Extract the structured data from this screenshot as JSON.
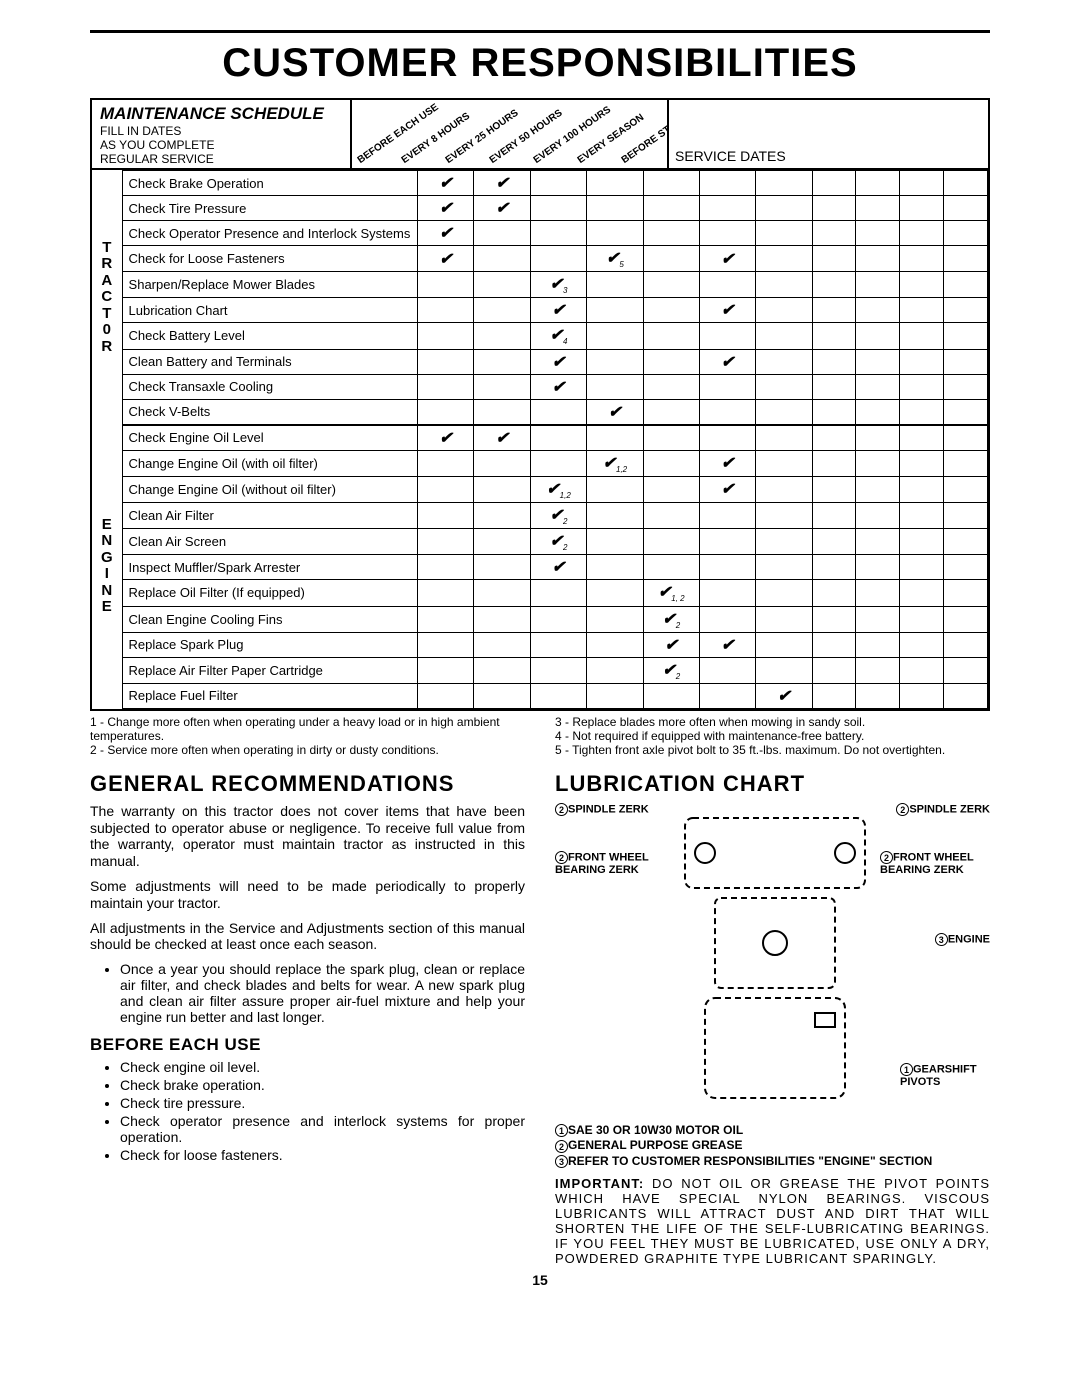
{
  "title": "CUSTOMER RESPONSIBILITIES",
  "schedule": {
    "header": "MAINTENANCE SCHEDULE",
    "subheader": "FILL IN DATES\nAS YOU COMPLETE\nREGULAR SERVICE",
    "intervals": [
      "BEFORE EACH USE",
      "EVERY 8 HOURS",
      "EVERY 25 HOURS",
      "EVERY 50 HOURS",
      "EVERY 100 HOURS",
      "EVERY SEASON",
      "BEFORE STORAGE"
    ],
    "service_dates": "SERVICE DATES",
    "categories": [
      {
        "label": "T\nR\nA\nC\nT\n0\nR",
        "rows": [
          {
            "task": "Check Brake Operation",
            "checks": [
              "✔",
              "✔",
              "",
              "",
              "",
              "",
              ""
            ]
          },
          {
            "task": "Check Tire Pressure",
            "checks": [
              "✔",
              "✔",
              "",
              "",
              "",
              "",
              ""
            ]
          },
          {
            "task": "Check Operator Presence and Interlock Systems",
            "checks": [
              "✔",
              "",
              "",
              "",
              "",
              "",
              ""
            ]
          },
          {
            "task": "Check for Loose Fasteners",
            "checks": [
              "✔",
              "",
              "",
              "✔",
              "",
              "✔",
              ""
            ],
            "subs": [
              "",
              "",
              "",
              "5",
              "",
              "",
              ""
            ]
          },
          {
            "task": "Sharpen/Replace Mower Blades",
            "checks": [
              "",
              "",
              "✔",
              "",
              "",
              "",
              ""
            ],
            "subs": [
              "",
              "",
              "3",
              "",
              "",
              "",
              ""
            ]
          },
          {
            "task": "Lubrication Chart",
            "checks": [
              "",
              "",
              "✔",
              "",
              "",
              "✔",
              ""
            ]
          },
          {
            "task": "Check Battery Level",
            "checks": [
              "",
              "",
              "✔",
              "",
              "",
              "",
              ""
            ],
            "subs": [
              "",
              "",
              "4",
              "",
              "",
              "",
              ""
            ]
          },
          {
            "task": "Clean Battery and Terminals",
            "checks": [
              "",
              "",
              "✔",
              "",
              "",
              "✔",
              ""
            ]
          },
          {
            "task": "Check Transaxle Cooling",
            "checks": [
              "",
              "",
              "✔",
              "",
              "",
              "",
              ""
            ]
          },
          {
            "task": "Check V-Belts",
            "checks": [
              "",
              "",
              "",
              "✔",
              "",
              "",
              ""
            ]
          }
        ]
      },
      {
        "label": "E\nN\nG\nI\nN\nE",
        "rows": [
          {
            "task": "Check Engine Oil Level",
            "checks": [
              "✔",
              "✔",
              "",
              "",
              "",
              "",
              ""
            ]
          },
          {
            "task": "Change Engine Oil (with oil filter)",
            "checks": [
              "",
              "",
              "",
              "✔",
              "",
              "✔",
              ""
            ],
            "subs": [
              "",
              "",
              "",
              "1,2",
              "",
              "",
              ""
            ]
          },
          {
            "task": "Change Engine Oil (without oil filter)",
            "checks": [
              "",
              "",
              "✔",
              "",
              "",
              "✔",
              ""
            ],
            "subs": [
              "",
              "",
              "1,2",
              "",
              "",
              "",
              ""
            ]
          },
          {
            "task": "Clean Air Filter",
            "checks": [
              "",
              "",
              "✔",
              "",
              "",
              "",
              ""
            ],
            "subs": [
              "",
              "",
              "2",
              "",
              "",
              "",
              ""
            ]
          },
          {
            "task": "Clean Air Screen",
            "checks": [
              "",
              "",
              "✔",
              "",
              "",
              "",
              ""
            ],
            "subs": [
              "",
              "",
              "2",
              "",
              "",
              "",
              ""
            ]
          },
          {
            "task": "Inspect Muffler/Spark Arrester",
            "checks": [
              "",
              "",
              "✔",
              "",
              "",
              "",
              ""
            ]
          },
          {
            "task": "Replace Oil Filter (If equipped)",
            "checks": [
              "",
              "",
              "",
              "",
              "✔",
              "",
              ""
            ],
            "subs": [
              "",
              "",
              "",
              "",
              "1, 2",
              "",
              ""
            ]
          },
          {
            "task": "Clean Engine Cooling Fins",
            "checks": [
              "",
              "",
              "",
              "",
              "✔",
              "",
              ""
            ],
            "subs": [
              "",
              "",
              "",
              "",
              "2",
              "",
              ""
            ]
          },
          {
            "task": "Replace Spark Plug",
            "checks": [
              "",
              "",
              "",
              "",
              "✔",
              "✔",
              ""
            ]
          },
          {
            "task": "Replace Air Filter Paper Cartridge",
            "checks": [
              "",
              "",
              "",
              "",
              "✔",
              "",
              ""
            ],
            "subs": [
              "",
              "",
              "",
              "",
              "2",
              "",
              ""
            ]
          },
          {
            "task": "Replace Fuel Filter",
            "checks": [
              "",
              "",
              "",
              "",
              "",
              "",
              "✔"
            ]
          }
        ]
      }
    ],
    "footnotes_left": "1 - Change more often when operating under a heavy load or in high ambient temperatures.\n2 - Service more often when operating in dirty or dusty conditions.",
    "footnotes_right": "3 - Replace blades more often when mowing in sandy soil.\n4 - Not required if equipped with maintenance-free battery.\n5 - Tighten front axle pivot bolt to 35 ft.-lbs. maximum. Do not overtighten."
  },
  "recs": {
    "h": "GENERAL  RECOMMENDATIONS",
    "p1": "The warranty on this tractor does not cover items that have been subjected to operator abuse or negligence.  To receive full value from the warranty, operator must maintain tractor as instructed in this manual.",
    "p2": "Some adjustments will need to be made periodically to properly maintain your tractor.",
    "p3": "All adjustments in the Service and Adjustments section of this manual should be checked at least once each season.",
    "bullet1": "Once a year you should replace the spark plug, clean or replace air filter, and check blades and belts for wear.  A new spark plug and clean air filter assure proper air-fuel mixture and help your engine run better and last longer.",
    "before_h": "BEFORE EACH USE",
    "before": [
      "Check engine oil level.",
      "Check brake operation.",
      "Check tire pressure.",
      "Check operator presence and interlock systems for proper operation.",
      "Check for loose fasteners."
    ]
  },
  "lube": {
    "h": "LUBRICATION CHART",
    "labels": {
      "sp": "SPINDLE ZERK",
      "fw": "FRONT WHEEL BEARING ZERK",
      "eng": "ENGINE",
      "gs": "GEARSHIFT PIVOTS"
    },
    "list": [
      "SAE 30 OR 10W30 MOTOR OIL",
      "GENERAL PURPOSE GREASE",
      "REFER TO CUSTOMER RESPONSIBILITIES \"ENGINE\" SECTION"
    ],
    "note_label": "IMPORTANT:",
    "note": "DO NOT OIL OR GREASE THE PIVOT POINTS WHICH HAVE SPECIAL NYLON BEARINGS. VISCOUS LUBRICANTS WILL ATTRACT DUST AND DIRT THAT WILL SHORTEN THE LIFE OF THE SELF-LUBRICATING BEARINGS. IF YOU FEEL THEY MUST BE LUBRICATED, USE ONLY A DRY, POWDERED GRAPHITE TYPE LUBRICANT SPARINGLY."
  },
  "page": "15"
}
